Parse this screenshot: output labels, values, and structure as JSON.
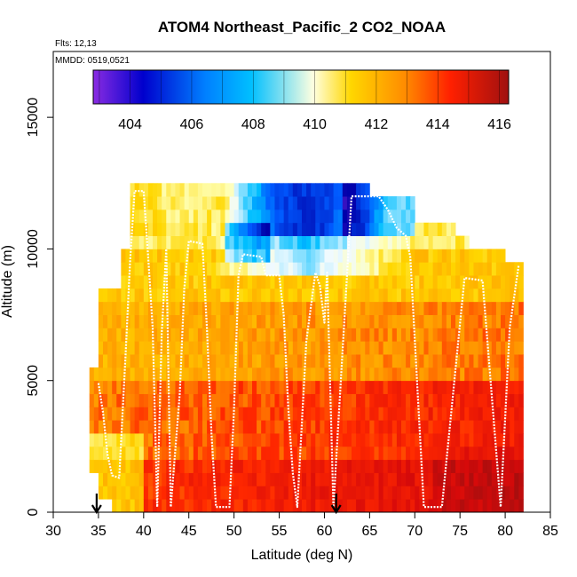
{
  "chart_data": {
    "type": "heatmap",
    "title": "ATOM4 Northeast_Pacific_2 CO2_NOAA",
    "subtitle_flights": "Flts: 12,13",
    "subtitle_dates": "MMDD: 0519,0521",
    "xlabel": "Latitude (deg N)",
    "ylabel": "Altitude (m)",
    "xlim": [
      30,
      85
    ],
    "ylim": [
      0,
      17500
    ],
    "x_ticks": [
      "30",
      "35",
      "40",
      "45",
      "50",
      "55",
      "60",
      "65",
      "70",
      "75",
      "80",
      "85"
    ],
    "y_ticks": [
      "0",
      "5000",
      "10000",
      "15000"
    ],
    "colorbar": {
      "range": [
        402.8,
        416.3
      ],
      "tick_values": [
        404,
        406,
        408,
        410,
        412,
        414,
        416
      ],
      "tick_labels": [
        "404",
        "406",
        "408",
        "410",
        "412",
        "414",
        "416"
      ],
      "colors": [
        "#8a2be2",
        "#0000cd",
        "#1e90ff",
        "#e0ffff",
        "#ffd700",
        "#ff4500",
        "#b22222"
      ]
    },
    "grid_cells_description": "CO2 concentration (ppm) binned by latitude and altitude",
    "flight_track": [
      [
        35.0,
        4900
      ],
      [
        35.5,
        3800
      ],
      [
        36.0,
        2200
      ],
      [
        36.5,
        1400
      ],
      [
        37.3,
        1300
      ],
      [
        38.0,
        6000
      ],
      [
        38.5,
        9500
      ],
      [
        39.0,
        12200
      ],
      [
        40.0,
        12200
      ],
      [
        40.5,
        9700
      ],
      [
        41.0,
        7000
      ],
      [
        41.5,
        200
      ],
      [
        42.0,
        6800
      ],
      [
        42.5,
        10000
      ],
      [
        43.0,
        200
      ],
      [
        44.0,
        4500
      ],
      [
        44.5,
        8500
      ],
      [
        45.0,
        10300
      ],
      [
        46.5,
        10200
      ],
      [
        47.0,
        7000
      ],
      [
        47.5,
        3000
      ],
      [
        48.0,
        200
      ],
      [
        49.5,
        200
      ],
      [
        50.0,
        3900
      ],
      [
        50.5,
        9000
      ],
      [
        51.0,
        9800
      ],
      [
        53.0,
        9700
      ],
      [
        53.5,
        9000
      ],
      [
        55.0,
        9000
      ],
      [
        55.5,
        7500
      ],
      [
        56.0,
        4000
      ],
      [
        56.5,
        1500
      ],
      [
        57.0,
        200
      ],
      [
        58.0,
        6500
      ],
      [
        59.0,
        9100
      ],
      [
        59.5,
        8600
      ],
      [
        60.0,
        7200
      ],
      [
        60.3,
        9100
      ],
      [
        61.0,
        200
      ],
      [
        62.5,
        9000
      ],
      [
        63.0,
        12000
      ],
      [
        66.0,
        12000
      ],
      [
        67.0,
        11500
      ],
      [
        68.0,
        10800
      ],
      [
        69.0,
        10500
      ],
      [
        69.5,
        9700
      ],
      [
        71.0,
        200
      ],
      [
        73.0,
        200
      ],
      [
        75.5,
        8900
      ],
      [
        77.5,
        8800
      ],
      [
        78.5,
        4500
      ],
      [
        79.5,
        200
      ],
      [
        80.5,
        7000
      ],
      [
        81.5,
        9400
      ]
    ],
    "profile_markers_lat": [
      34.8,
      61.3
    ]
  }
}
